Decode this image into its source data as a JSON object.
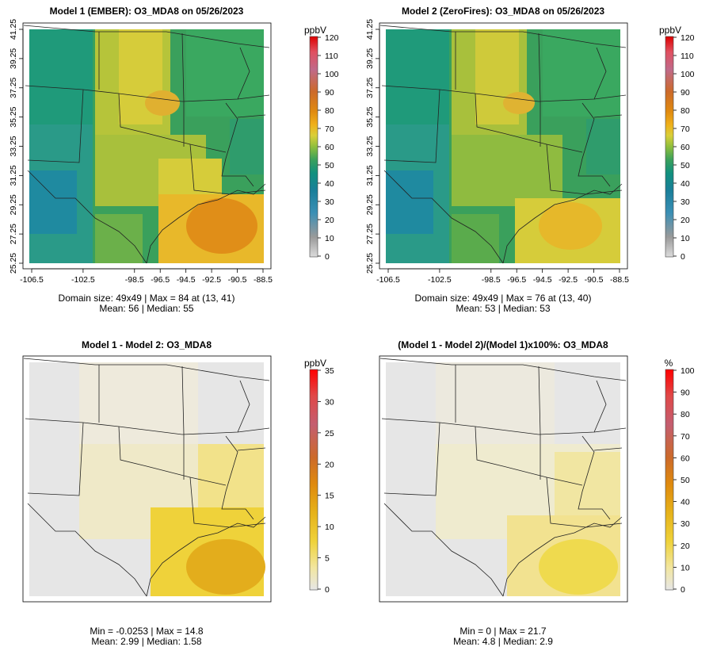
{
  "chart_data": [
    {
      "type": "heatmap",
      "title": "Model 1 (EMBER): O3_MDA8 on 05/26/2023",
      "unit": "ppbV",
      "xticks": [
        "-106.5",
        "-102.5",
        "-98.5",
        "-96.5",
        "-94.5",
        "-92.5",
        "-90.5",
        "-88.5"
      ],
      "yticks": [
        "25.25",
        "27.25",
        "29.25",
        "31.25",
        "33.25",
        "35.25",
        "37.25",
        "39.25",
        "41.25"
      ],
      "colorbar": {
        "ticks": [
          "0",
          "10",
          "20",
          "30",
          "40",
          "50",
          "60",
          "70",
          "80",
          "90",
          "100",
          "110",
          "120"
        ],
        "min": 0,
        "max": 120
      },
      "subtitle_lines": [
        "Domain size: 49x49 | Max = 84 at (13, 41)",
        "Mean: 56 |  Median: 55"
      ],
      "grid_size": [
        49,
        49
      ],
      "max_value": 84,
      "max_location": [
        13,
        41
      ],
      "mean": 56,
      "median": 55
    },
    {
      "type": "heatmap",
      "title": "Model 2 (ZeroFires): O3_MDA8 on 05/26/2023",
      "unit": "ppbV",
      "xticks": [
        "-106.5",
        "-102.5",
        "-98.5",
        "-96.5",
        "-94.5",
        "-92.5",
        "-90.5",
        "-88.5"
      ],
      "yticks": [
        "25.25",
        "27.25",
        "29.25",
        "31.25",
        "33.25",
        "35.25",
        "37.25",
        "39.25",
        "41.25"
      ],
      "colorbar": {
        "ticks": [
          "0",
          "10",
          "20",
          "30",
          "40",
          "50",
          "60",
          "70",
          "80",
          "90",
          "100",
          "110",
          "120"
        ],
        "min": 0,
        "max": 120
      },
      "subtitle_lines": [
        "Domain size: 49x49 | Max = 76 at (13, 40)",
        "Mean: 53 |  Median: 53"
      ],
      "grid_size": [
        49,
        49
      ],
      "max_value": 76,
      "max_location": [
        13,
        40
      ],
      "mean": 53,
      "median": 53
    },
    {
      "type": "heatmap",
      "title": "Model 1 - Model 2: O3_MDA8",
      "unit": "ppbV",
      "colorbar": {
        "ticks": [
          "0",
          "5",
          "10",
          "15",
          "20",
          "25",
          "30",
          "35"
        ],
        "min": 0,
        "max": 35
      },
      "subtitle_lines": [
        "Min = -0.0253 | Max = 14.8",
        "Mean: 2.99 |  Median: 1.58"
      ],
      "min_value": -0.0253,
      "max_value": 14.8,
      "mean": 2.99,
      "median": 1.58
    },
    {
      "type": "heatmap",
      "title": "(Model 1 - Model 2)/(Model 1)x100%: O3_MDA8",
      "unit": "%",
      "colorbar": {
        "ticks": [
          "0",
          "10",
          "20",
          "30",
          "40",
          "50",
          "60",
          "70",
          "80",
          "90",
          "100"
        ],
        "min": 0,
        "max": 100
      },
      "subtitle_lines": [
        "Min = 0 | Max = 21.7",
        "Mean: 4.8 |  Median: 2.9"
      ],
      "min_value": 0,
      "max_value": 21.7,
      "mean": 4.8,
      "median": 2.9
    }
  ],
  "colors": {
    "abs_scale": [
      "#dcdcdc",
      "#9a9a9a",
      "#3b8fb5",
      "#1a7f9a",
      "#11907e",
      "#3aa05c",
      "#8fbf3c",
      "#d9cf3a",
      "#efb01a",
      "#e08a10",
      "#cc6a2a",
      "#c06a8a",
      "#e05060",
      "#dd0000"
    ],
    "diff_scale": [
      "#e6e6e6",
      "#f2e6a0",
      "#efd23a",
      "#e6b21a",
      "#df8a0e",
      "#cc6a2a",
      "#c45e70",
      "#e04848",
      "#ff0000"
    ],
    "state_lines": "#222222"
  }
}
